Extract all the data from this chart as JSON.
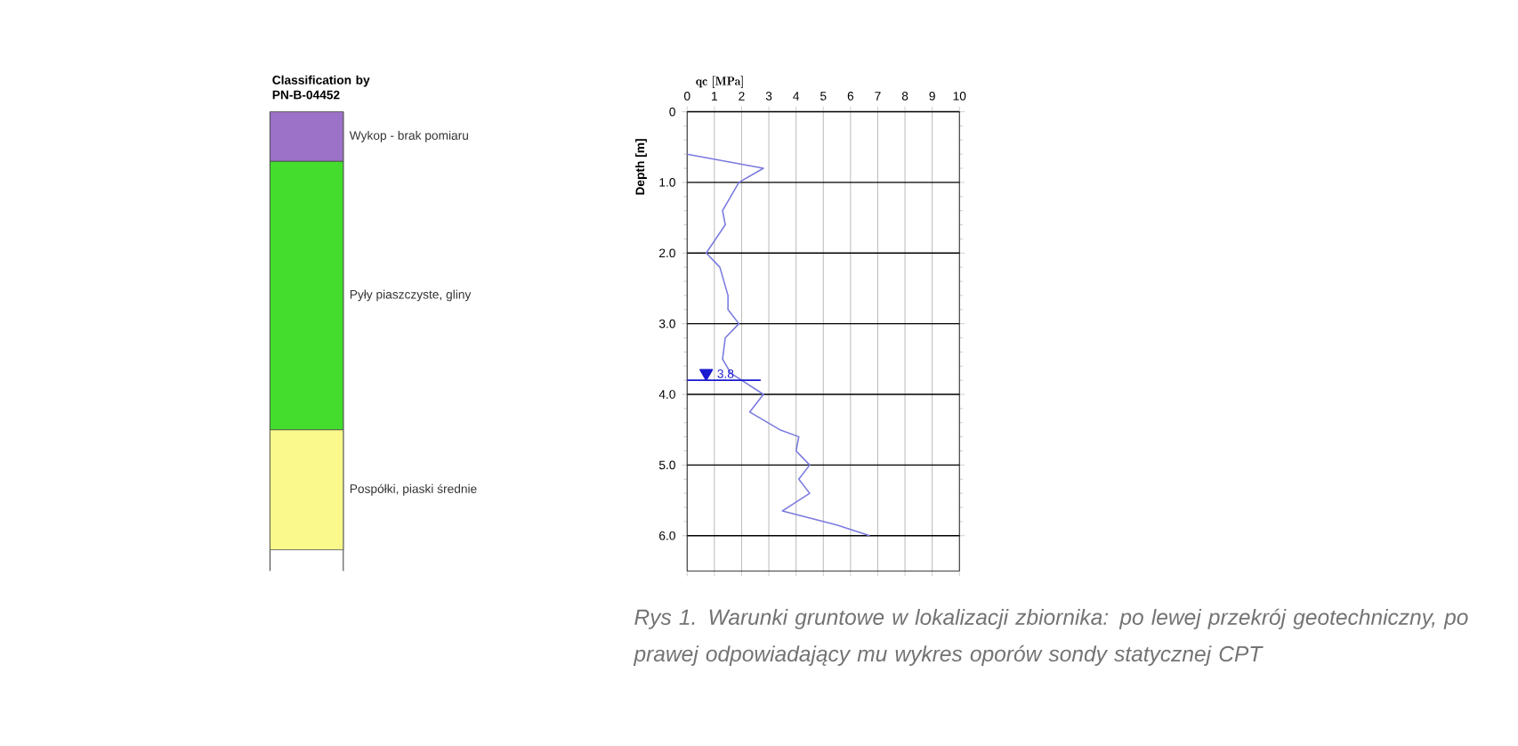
{
  "chart_data": [
    {
      "type": "bar",
      "stacked": true,
      "title": "Classification by PN-B-04452",
      "categories": [
        null
      ],
      "series": [
        {
          "name": "Wykop - brak pomiaru",
          "color": "#9b72c8",
          "values": [
            0.7
          ]
        },
        {
          "name": "Pyły piaszczyste, gliny",
          "color": "#44dd2e",
          "values": [
            3.8
          ]
        },
        {
          "name": "Pospółki, piaski średnie",
          "color": "#fafa8c",
          "values": [
            1.7
          ]
        }
      ],
      "ylim": [
        6.5,
        0
      ],
      "tick_labels": false
    },
    {
      "type": "line",
      "xlabel": "qc [MPa]",
      "ylabel": "Depth [m]",
      "series": [
        {
          "color": "#7a7ae0",
          "x": [
            0,
            2.8,
            1.9,
            1.3,
            1.4,
            0.7,
            1.2,
            1.5,
            1.5,
            1.9,
            1.4,
            1.3,
            1.6,
            2.8,
            2.3,
            3.4,
            4.1,
            4.0,
            4.5,
            4.1,
            4.5,
            3.5,
            5.5,
            6.7
          ],
          "values": [
            0.6,
            0.8,
            1.0,
            1.4,
            1.6,
            2.0,
            2.2,
            2.6,
            2.8,
            3.0,
            3.2,
            3.5,
            3.7,
            4.0,
            4.25,
            4.5,
            4.6,
            4.8,
            5.0,
            5.2,
            5.4,
            5.65,
            5.85,
            6.0
          ]
        },
        {
          "marker": "triangle",
          "color": "#1a1ad0",
          "x": [
            0.7
          ],
          "values": [
            3.7
          ]
        }
      ],
      "xlim": [
        0,
        10
      ],
      "xticks": [
        0,
        1,
        2,
        3,
        4,
        5,
        6,
        7,
        8,
        9,
        10
      ],
      "ylim": [
        6.5,
        0
      ],
      "yticks": [
        0,
        {
          "value": 1,
          "label": "1.0"
        },
        {
          "value": 2,
          "label": "2.0"
        },
        {
          "value": 3,
          "label": "3.0"
        },
        {
          "value": 4,
          "label": "4.0"
        },
        {
          "value": 5,
          "label": "5.0"
        },
        {
          "value": 6,
          "label": "6.0"
        }
      ],
      "grid": true,
      "marker": "none",
      "ref_lines": [
        {
          "axis": "y",
          "value": 3.8,
          "label": "3.8",
          "color": "#1a1ad0"
        }
      ],
      "annotations": [
        "Rys 1. Warunki gruntowe w lokalizacji zbiornika: po lewej przekrój geotechniczny, po prawej odpowiadający mu wykres oporów sondy statycznej CPT"
      ]
    }
  ]
}
